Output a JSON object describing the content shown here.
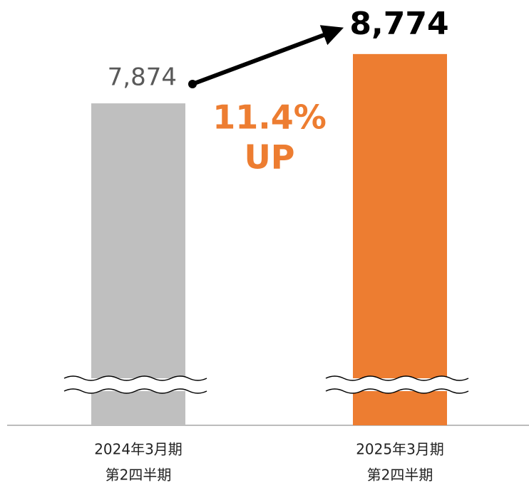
{
  "chart_data": {
    "type": "bar",
    "categories": [
      [
        "2024年3月期",
        "第2四半期"
      ],
      [
        "2025年3月期",
        "第2四半期"
      ]
    ],
    "values": [
      7874,
      8774
    ],
    "value_labels": [
      "7,874",
      "8,774"
    ],
    "colors": [
      "#bfbfbf",
      "#ed7d31"
    ],
    "ylim": [
      2000,
      9500
    ],
    "axis_break": true,
    "annotation": [
      "11.4%",
      "UP"
    ],
    "annotation_color": "#ed7d31"
  }
}
